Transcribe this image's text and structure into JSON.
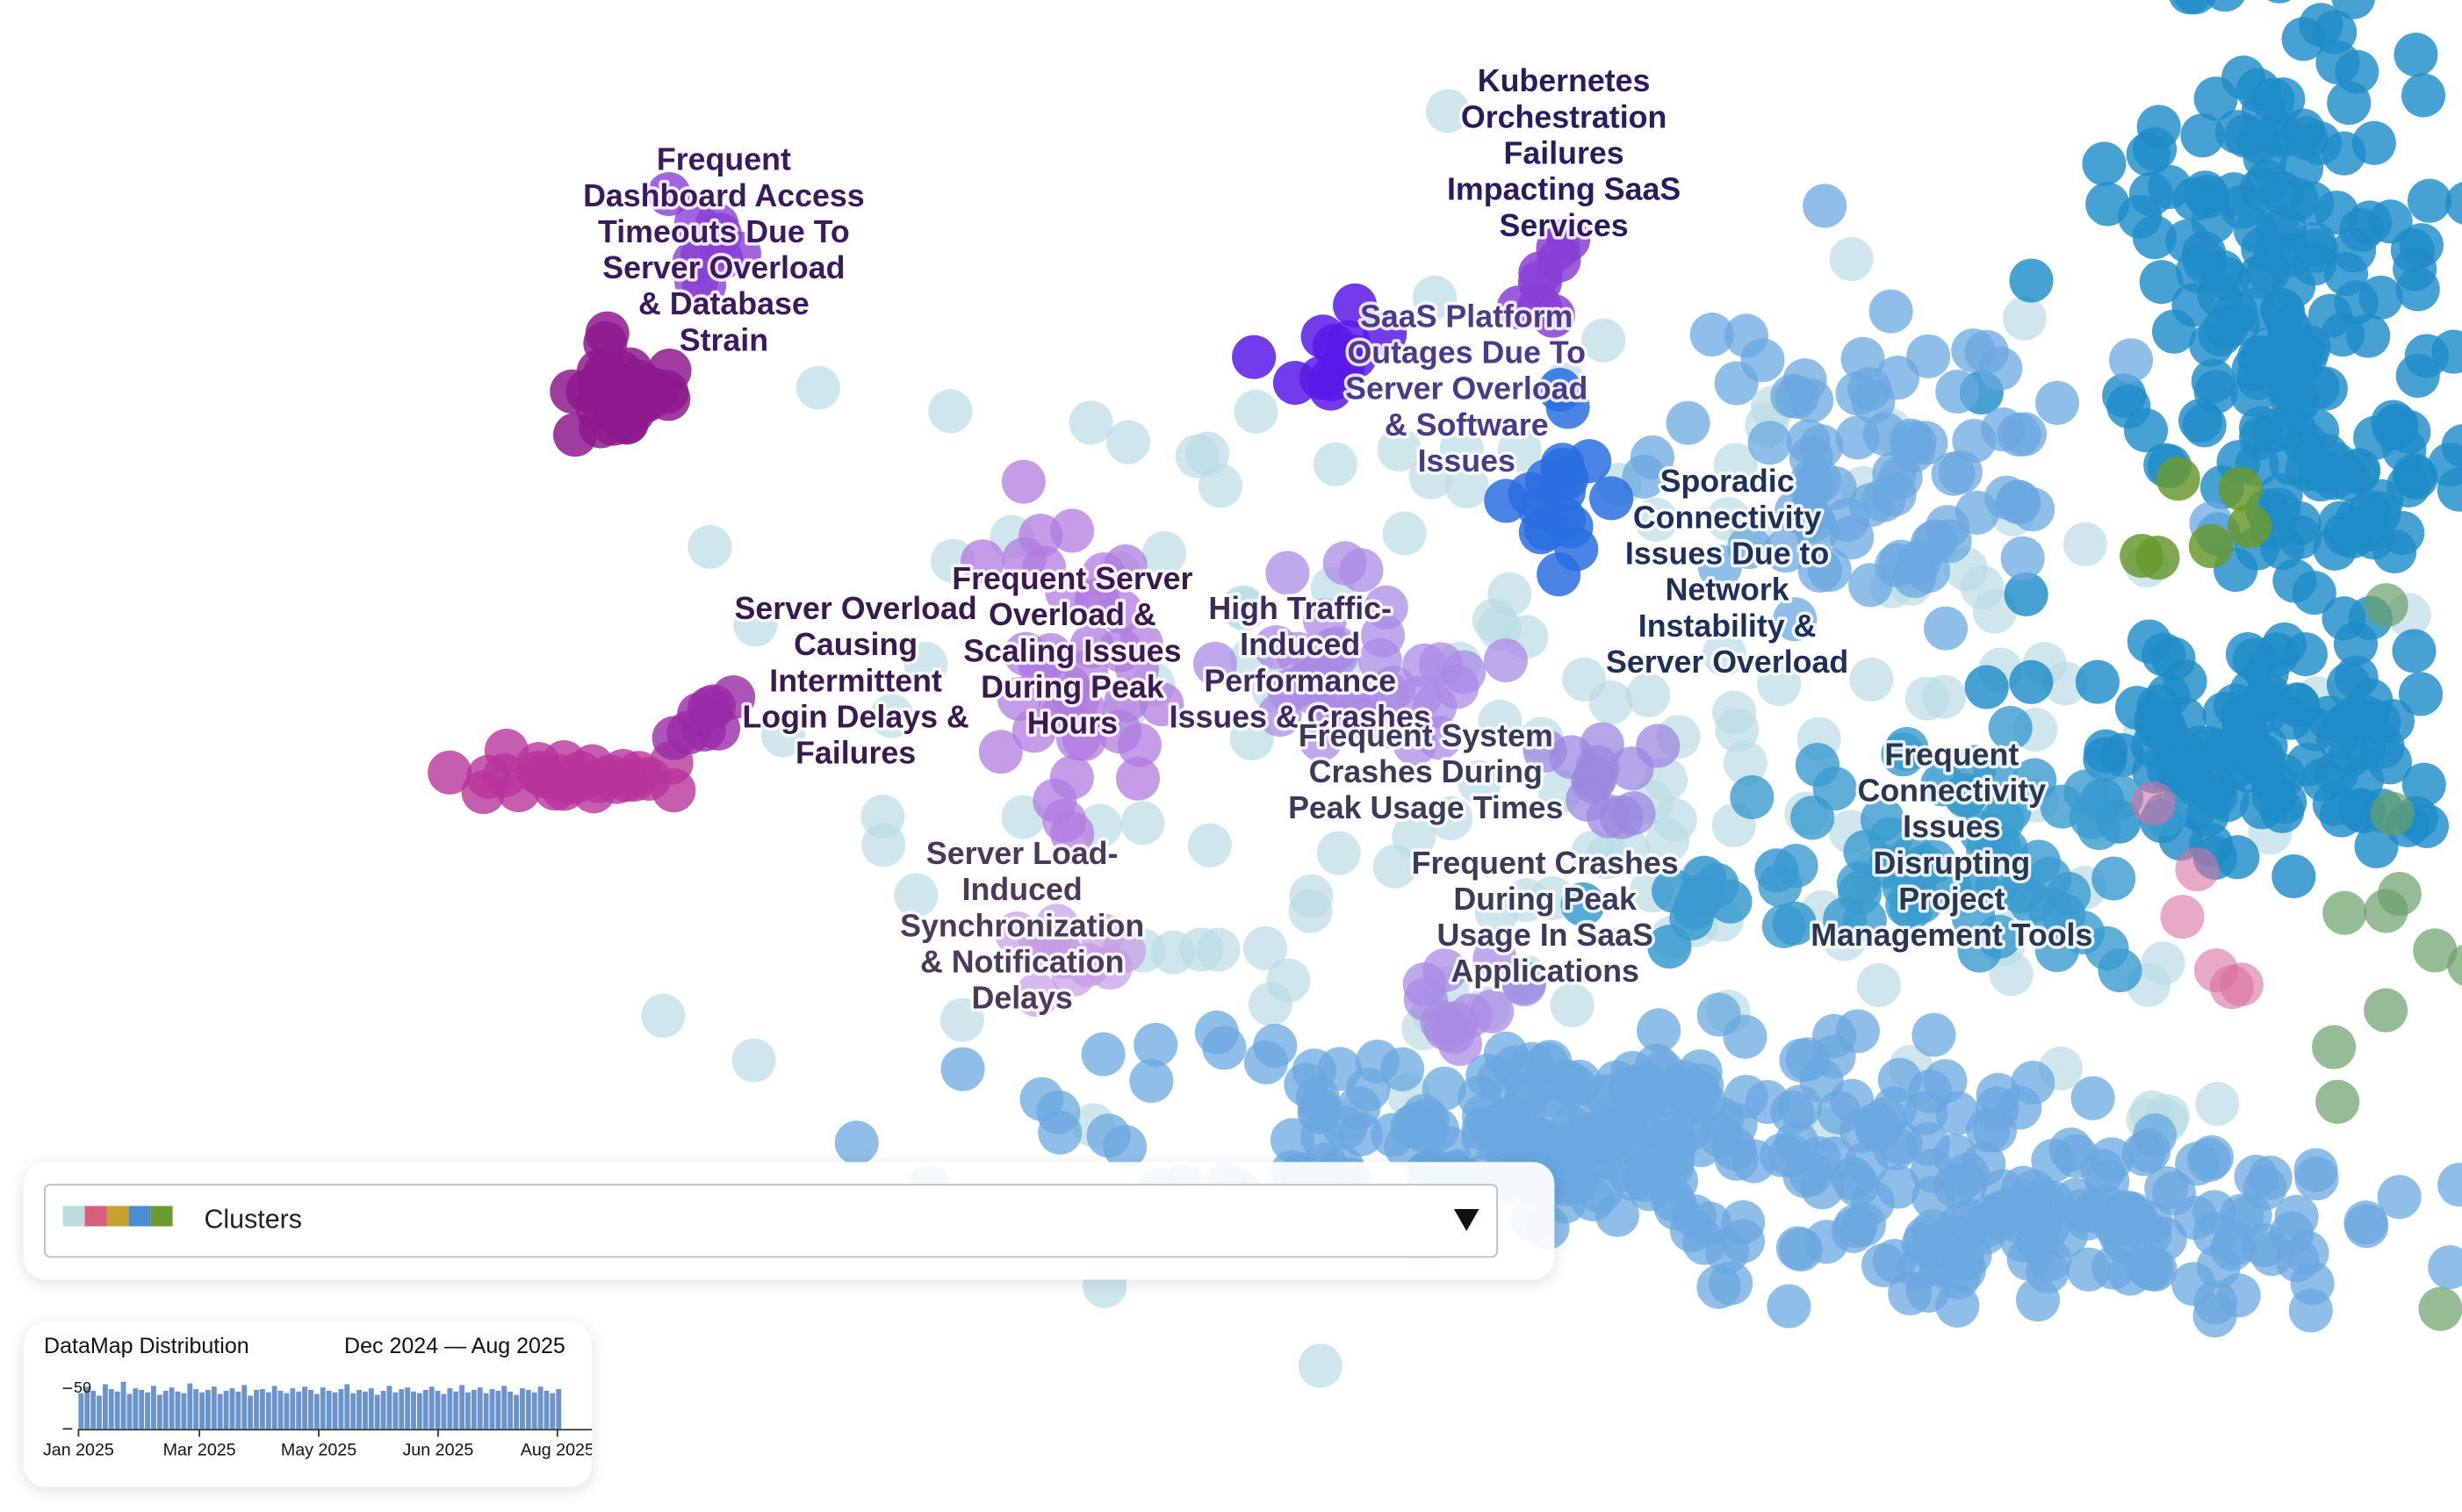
{
  "cluster_labels": [
    {
      "lines": [
        "Frequent",
        "Dashboard Access",
        "Timeouts Due To",
        "Server Overload",
        "& Database",
        "Strain"
      ]
    },
    {
      "lines": [
        "Kubernetes",
        "Orchestration",
        "Failures",
        "Impacting SaaS",
        "Services"
      ]
    },
    {
      "lines": [
        "SaaS Platform",
        "Outages Due To",
        "Server Overload",
        "& Software",
        "Issues"
      ]
    },
    {
      "lines": [
        "Sporadic",
        "Connectivity",
        "Issues Due to",
        "Network",
        "Instability &",
        "Server Overload"
      ]
    },
    {
      "lines": [
        "Server Overload",
        "Causing",
        "Intermittent",
        "Login Delays &",
        "Failures"
      ]
    },
    {
      "lines": [
        "Frequent Server",
        "Overload &",
        "Scaling Issues",
        "During Peak",
        "Hours"
      ]
    },
    {
      "lines": [
        "High Traffic-",
        "Induced",
        "Performance",
        "Issues & Crashes"
      ]
    },
    {
      "lines": [
        "Frequent System",
        "Crashes During",
        "Peak Usage Times"
      ]
    },
    {
      "lines": [
        "Frequent",
        "Connectivity",
        "Issues",
        "Disrupting",
        "Project",
        "Management Tools"
      ]
    },
    {
      "lines": [
        "Server Load-",
        "Induced",
        "Synchronization",
        "& Notification",
        "Delays"
      ]
    },
    {
      "lines": [
        "Frequent Crashes",
        "During Peak",
        "Usage In SaaS",
        "Applications"
      ]
    }
  ],
  "layer_selector": {
    "label": "Clusters"
  },
  "distribution": {
    "title": "DataMap Distribution",
    "date_range": "Dec 2024 — Aug 2025",
    "ylim": [
      0,
      60
    ],
    "yticks": [
      50
    ],
    "xticks": [
      "Jan 2025",
      "Mar 2025",
      "May 2025",
      "Jun 2025",
      "Aug 2025"
    ],
    "counts": [
      44,
      52,
      47,
      41,
      55,
      49,
      46,
      58,
      43,
      50,
      48,
      45,
      53,
      42,
      47,
      51,
      46,
      44,
      56,
      49,
      45,
      48,
      52,
      43,
      47,
      50,
      46,
      54,
      41,
      48,
      49,
      45,
      53,
      47,
      44,
      50,
      46,
      52,
      48,
      43,
      51,
      47,
      45,
      49,
      55,
      44,
      48,
      46,
      50,
      42,
      47,
      53,
      45,
      49,
      51,
      46,
      44,
      48,
      52,
      47,
      43,
      50,
      46,
      54,
      45,
      48,
      51,
      44,
      49,
      47,
      53,
      46,
      42,
      50,
      48,
      45,
      52,
      47,
      44,
      49
    ]
  }
}
